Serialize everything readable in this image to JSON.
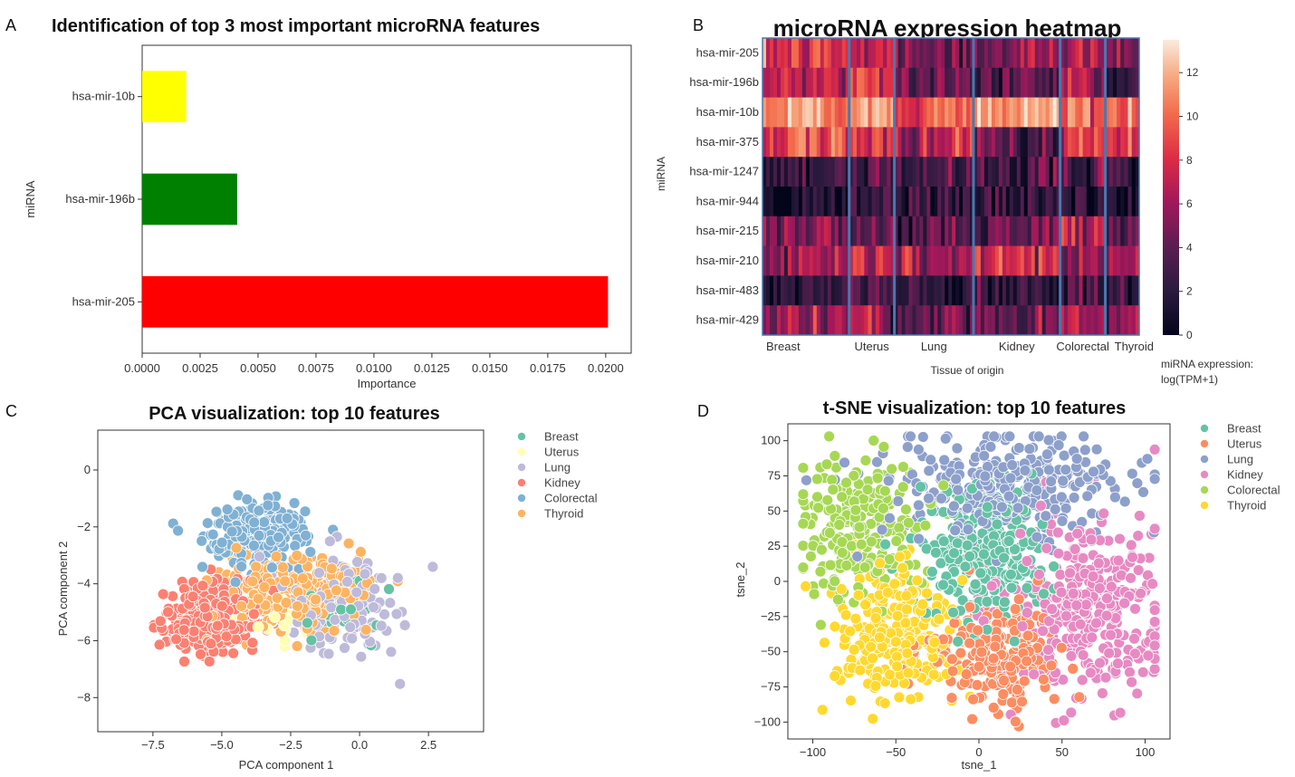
{
  "panels": {
    "a": {
      "letter": "A"
    },
    "b": {
      "letter": "B"
    },
    "c": {
      "letter": "C"
    },
    "d": {
      "letter": "D"
    }
  },
  "chart_data": [
    {
      "panel": "A",
      "type": "bar",
      "orientation": "horizontal",
      "title": "Identification of top 3 most important microRNA features",
      "xlabel": "Importance",
      "ylabel": "miRNA",
      "categories": [
        "hsa-mir-10b",
        "hsa-mir-196b",
        "hsa-mir-205"
      ],
      "values": [
        0.0019,
        0.0041,
        0.0201
      ],
      "colors": [
        "#ffff00",
        "#008000",
        "#ff0000"
      ],
      "xlim": [
        0,
        0.0211
      ],
      "xticks": [
        "0.0000",
        "0.0025",
        "0.0050",
        "0.0075",
        "0.0100",
        "0.0125",
        "0.0150",
        "0.0175",
        "0.0200"
      ]
    },
    {
      "panel": "B",
      "type": "heatmap",
      "title": "microRNA expression heatmap",
      "xlabel": "Tissue of origin",
      "ylabel": "miRNA",
      "rows": [
        "hsa-mir-205",
        "hsa-mir-196b",
        "hsa-mir-10b",
        "hsa-mir-375",
        "hsa-mir-1247",
        "hsa-mir-944",
        "hsa-mir-215",
        "hsa-mir-210",
        "hsa-mir-483",
        "hsa-mir-429"
      ],
      "groups": [
        "Breast",
        "Uterus",
        "Lung",
        "Kidney",
        "Colorectal",
        "Thyroid"
      ],
      "group_fraction": [
        0.23,
        0.12,
        0.21,
        0.23,
        0.12,
        0.09
      ],
      "mean_expression": [
        [
          8,
          7,
          5,
          5,
          6,
          5
        ],
        [
          7,
          8,
          4,
          4,
          7,
          2
        ],
        [
          11,
          12,
          9,
          12,
          10,
          10
        ],
        [
          9,
          8,
          7,
          4,
          8,
          8
        ],
        [
          3,
          4,
          3,
          3,
          4,
          2
        ],
        [
          1,
          3,
          2,
          2,
          0.5,
          1
        ],
        [
          5,
          4,
          3,
          4,
          7,
          4
        ],
        [
          6,
          7,
          6,
          8,
          6,
          6
        ],
        [
          2,
          4,
          2,
          2,
          3,
          2
        ],
        [
          6,
          7,
          5,
          4,
          7,
          6
        ]
      ],
      "colorbar": {
        "min": 0,
        "max": 13.5,
        "ticks": [
          "0",
          "2",
          "4",
          "6",
          "8",
          "10",
          "12"
        ],
        "label_line1": "miRNA expression:",
        "label_line2": "log(TPM+1)"
      }
    },
    {
      "panel": "C",
      "type": "scatter",
      "title": "PCA visualization: top 10 features",
      "xlabel": "PCA component 1",
      "ylabel": "PCA component 2",
      "xlim": [
        -9.5,
        4.5
      ],
      "ylim": [
        -9.2,
        1.4
      ],
      "xticks": [
        "−7.5",
        "−5.0",
        "−2.5",
        "0.0",
        "2.5"
      ],
      "yticks": [
        "0",
        "−2",
        "−4",
        "−6",
        "−8"
      ],
      "xtick_values": [
        -7.5,
        -5.0,
        -2.5,
        0.0,
        2.5
      ],
      "ytick_values": [
        0,
        -2,
        -4,
        -6,
        -8
      ],
      "legend": "right",
      "series": [
        {
          "name": "Breast",
          "color": "#66c2a5",
          "center": [
            -0.6,
            -5.0
          ],
          "spread": [
            0.8,
            0.6
          ],
          "count": 25
        },
        {
          "name": "Uterus",
          "color": "#ffffb3",
          "center": [
            -3.0,
            -5.3
          ],
          "spread": [
            0.7,
            0.5
          ],
          "count": 20
        },
        {
          "name": "Lung",
          "color": "#bebada",
          "center": [
            -0.6,
            -4.6
          ],
          "spread": [
            1.1,
            0.9
          ],
          "count": 160
        },
        {
          "name": "Kidney",
          "color": "#fb8072",
          "center": [
            -5.3,
            -5.2
          ],
          "spread": [
            0.9,
            0.7
          ],
          "count": 280
        },
        {
          "name": "Colorectal",
          "color": "#80b1d3",
          "center": [
            -3.7,
            -2.3
          ],
          "spread": [
            0.9,
            0.6
          ],
          "count": 220
        },
        {
          "name": "Thyroid",
          "color": "#fdb462",
          "center": [
            -2.5,
            -4.3
          ],
          "spread": [
            1.3,
            0.6
          ],
          "count": 300
        }
      ]
    },
    {
      "panel": "D",
      "type": "scatter",
      "title": "t-SNE visualization: top 10 features",
      "xlabel": "tsne_1",
      "ylabel": "tsne_2",
      "xlim": [
        -115,
        115
      ],
      "ylim": [
        -112,
        112
      ],
      "xticks": [
        "−100",
        "−50",
        "0",
        "50",
        "100"
      ],
      "yticks": [
        "100",
        "75",
        "50",
        "25",
        "0",
        "−25",
        "−50",
        "−75",
        "−100"
      ],
      "xtick_values": [
        -100,
        -50,
        0,
        50,
        100
      ],
      "ytick_values": [
        100,
        75,
        50,
        25,
        0,
        -25,
        -50,
        -75,
        -100
      ],
      "legend": "right",
      "series": [
        {
          "name": "Breast",
          "color": "#66c2a5",
          "center": [
            5,
            20
          ],
          "spread": [
            20,
            25
          ],
          "count": 260
        },
        {
          "name": "Uterus",
          "color": "#fc8d62",
          "center": [
            10,
            -55
          ],
          "spread": [
            20,
            20
          ],
          "count": 220
        },
        {
          "name": "Lung",
          "color": "#8da0cb",
          "center": [
            15,
            70
          ],
          "spread": [
            35,
            18
          ],
          "count": 300
        },
        {
          "name": "Kidney",
          "color": "#e78ac3",
          "center": [
            65,
            -20
          ],
          "spread": [
            25,
            35
          ],
          "count": 330
        },
        {
          "name": "Colorectal",
          "color": "#a6d854",
          "center": [
            -75,
            40
          ],
          "spread": [
            18,
            25
          ],
          "count": 230
        },
        {
          "name": "Thyroid",
          "color": "#ffd92f",
          "center": [
            -50,
            -40
          ],
          "spread": [
            20,
            25
          ],
          "count": 250
        }
      ]
    }
  ]
}
